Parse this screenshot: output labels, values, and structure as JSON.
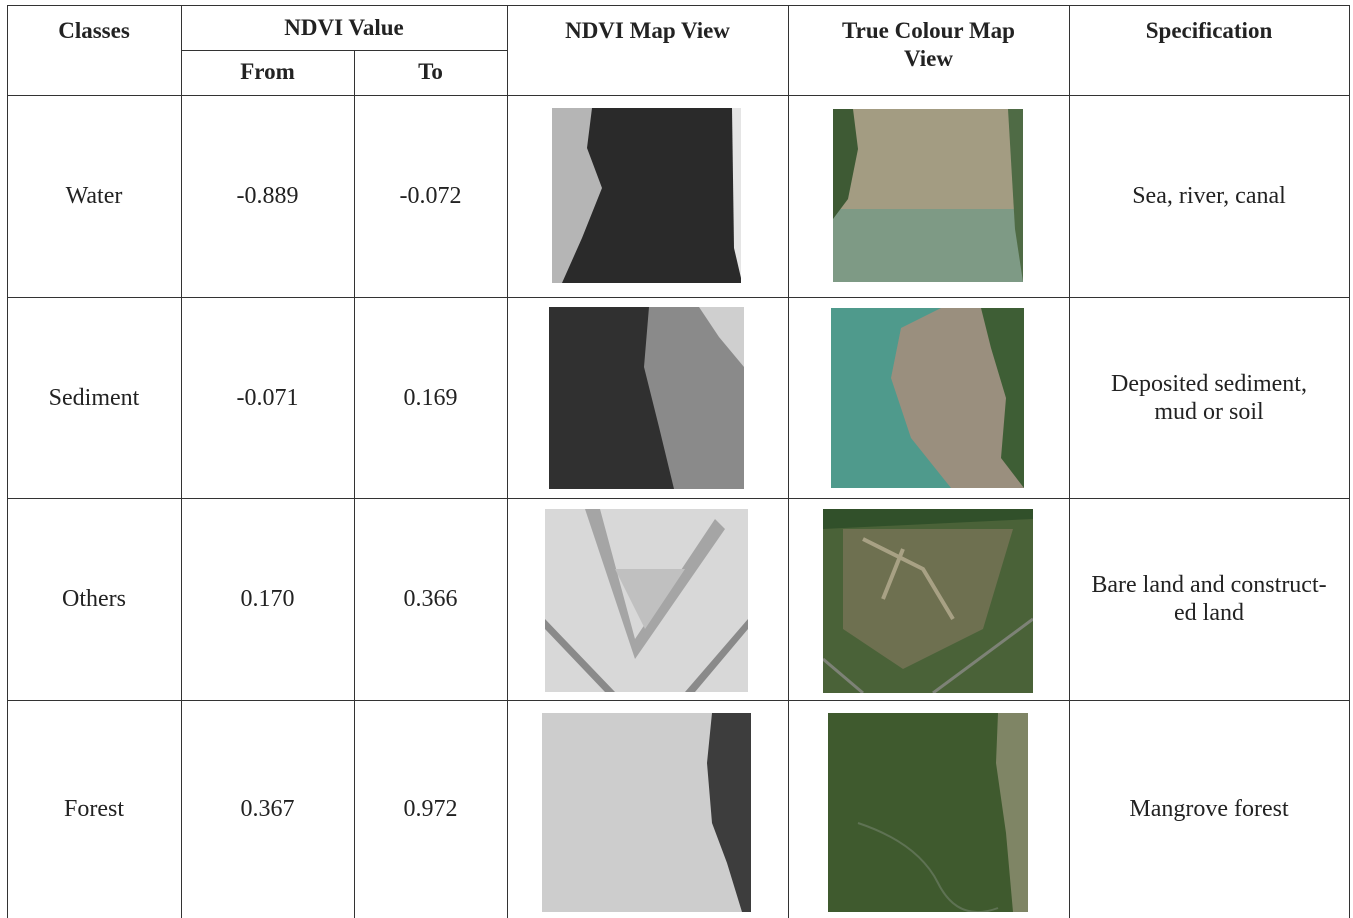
{
  "table": {
    "header": {
      "classes": "Classes",
      "ndvi_value": "NDVI Value",
      "from": "From",
      "to": "To",
      "ndvi_map_view": "NDVI Map View",
      "true_colour_map_view": "True Colour Map View",
      "specification": "Specification"
    },
    "rows": [
      {
        "class": "Water",
        "from": "-0.889",
        "to": "-0.072",
        "specification": [
          "Sea, river, canal"
        ]
      },
      {
        "class": "Sediment",
        "from": "-0.071",
        "to": "0.169",
        "specification": [
          "Deposited sediment,",
          "mud or soil"
        ]
      },
      {
        "class": "Others",
        "from": "0.170",
        "to": "0.366",
        "specification": [
          "Bare land and construct-",
          "ed land"
        ]
      },
      {
        "class": "Forest",
        "from": "0.367",
        "to": "0.972",
        "specification": [
          "Mangrove forest"
        ]
      }
    ]
  }
}
